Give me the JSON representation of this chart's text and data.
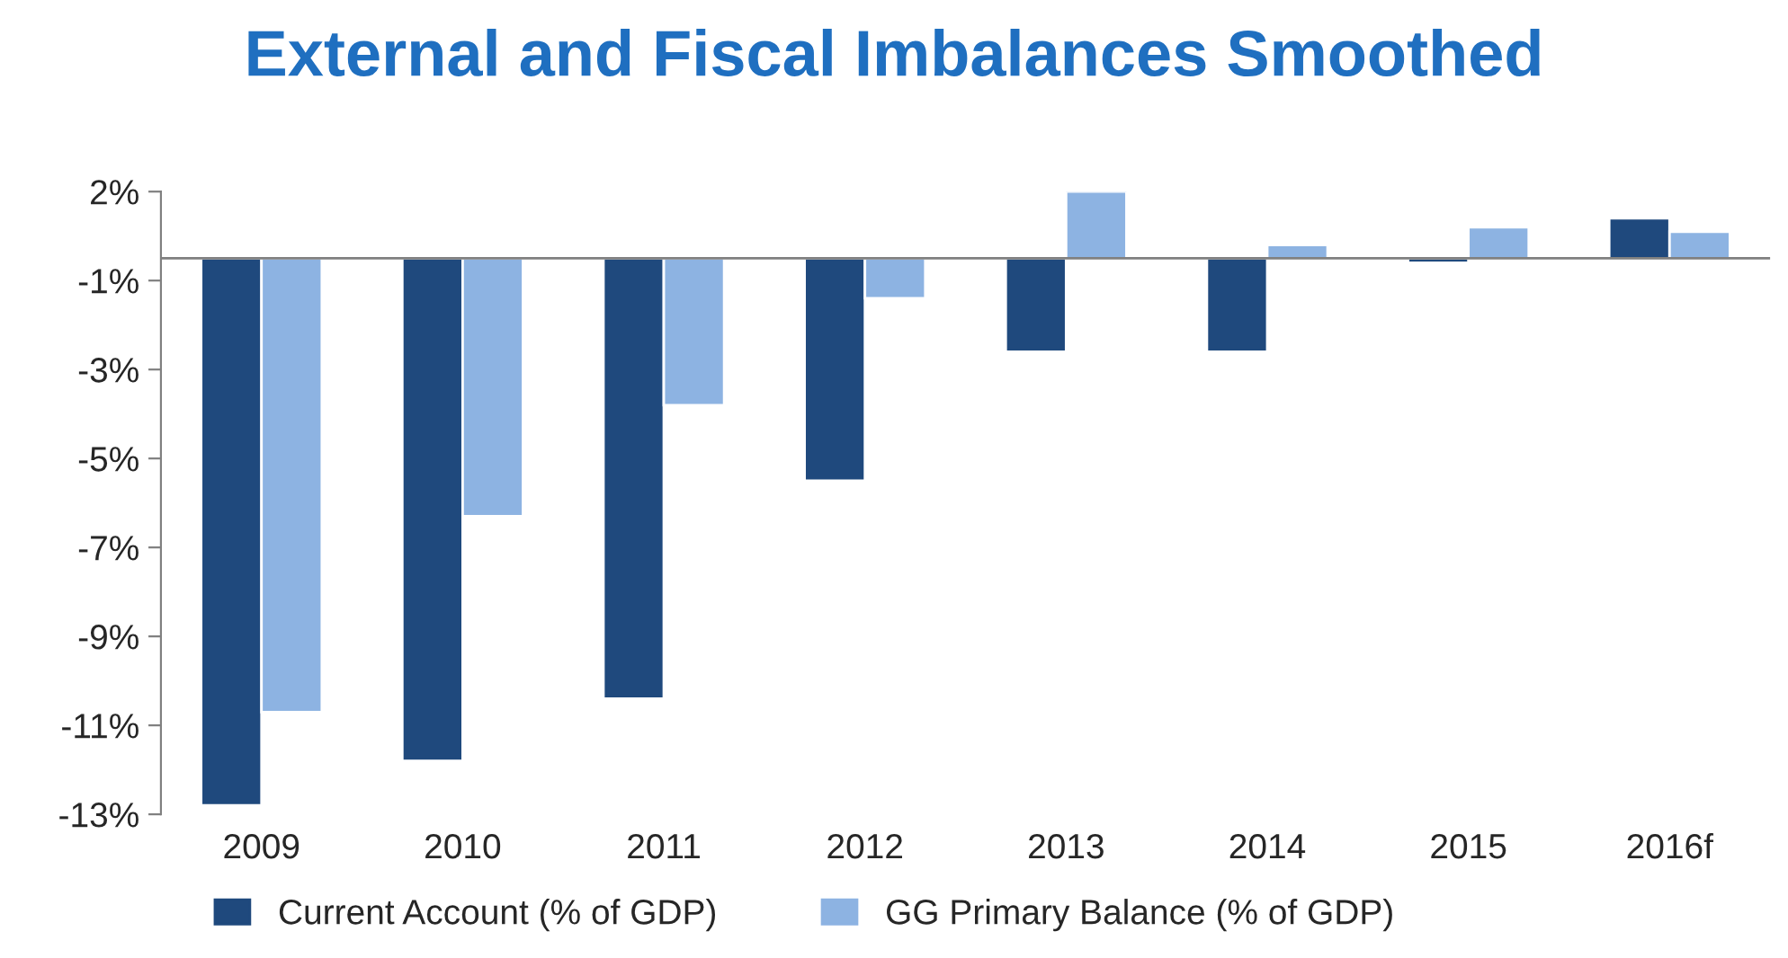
{
  "chart_data": {
    "type": "bar",
    "title": "External and Fiscal Imbalances Smoothed",
    "categories": [
      "2009",
      "2010",
      "2011",
      "2012",
      "2013",
      "2014",
      "2015",
      "2016f"
    ],
    "series": [
      {
        "name": "Current Account (% of GDP)",
        "color": "#1f497d",
        "values": [
          -12.3,
          -11.3,
          -9.9,
          -5.0,
          -2.1,
          -2.1,
          -0.1,
          0.9
        ]
      },
      {
        "name": "GG Primary Balance (% of GDP)",
        "color": "#8db3e2",
        "values": [
          -10.2,
          -5.8,
          -3.3,
          -0.9,
          1.5,
          0.3,
          0.7,
          0.6
        ]
      }
    ],
    "ylim": [
      -12.5,
      1.5
    ],
    "yticks": [
      {
        "value": 1.5,
        "label": "2%"
      },
      {
        "value": -0.5,
        "label": "-1%"
      },
      {
        "value": -2.5,
        "label": "-3%"
      },
      {
        "value": -4.5,
        "label": "-5%"
      },
      {
        "value": -6.5,
        "label": "-7%"
      },
      {
        "value": -8.5,
        "label": "-9%"
      },
      {
        "value": -10.5,
        "label": "-11%"
      },
      {
        "value": -12.5,
        "label": "-13%"
      }
    ],
    "grid": false,
    "legend": "bottom"
  }
}
